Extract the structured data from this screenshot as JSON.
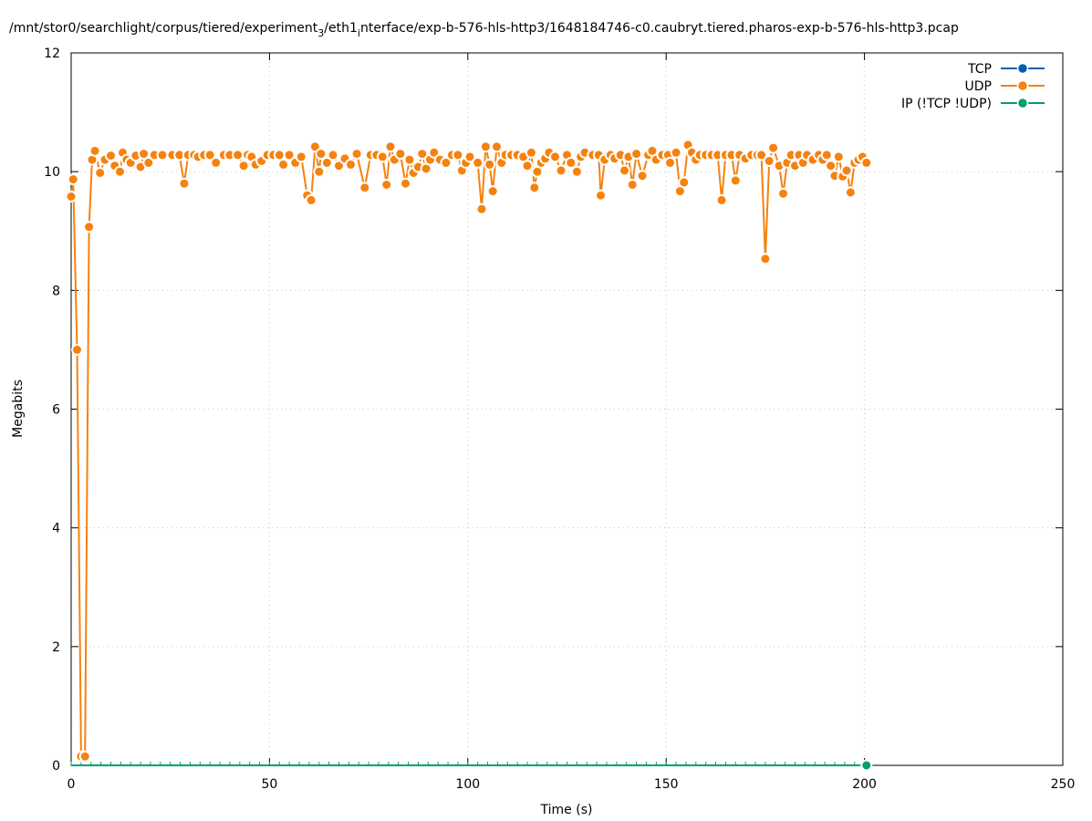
{
  "chart_data": {
    "type": "line",
    "title_main": "/mnt/stor0/searchlight/corpus/tiered/experiment",
    "title_sub1": "3",
    "title_mid": "/eth1",
    "title_sub2": "i",
    "title_rest": "nterface/exp-b-576-hls-http3/1648184746-c0.caubryt.tiered.pharos-exp-b-576-hls-http3.pcap",
    "xlabel": "Time (s)",
    "ylabel": "Megabits",
    "xlim": [
      0,
      250
    ],
    "ylim": [
      0,
      12
    ],
    "x_ticks": [
      "0",
      "50",
      "100",
      "150",
      "200",
      "250"
    ],
    "y_ticks": [
      "0",
      "2",
      "4",
      "6",
      "8",
      "10",
      "12"
    ],
    "grid": true,
    "legend_position": "top-right",
    "series": [
      {
        "name": "TCP",
        "color": "#0060ad",
        "points": []
      },
      {
        "name": "UDP",
        "color": "#f5820f",
        "points": [
          [
            0,
            9.58
          ],
          [
            0.5,
            9.87
          ],
          [
            1.5,
            7.0
          ],
          [
            2.5,
            0.15
          ],
          [
            3.5,
            0.15
          ],
          [
            4.5,
            9.07
          ],
          [
            5.3,
            10.2
          ],
          [
            6.0,
            10.35
          ],
          [
            7.3,
            9.98
          ],
          [
            8.5,
            10.2
          ],
          [
            10.0,
            10.27
          ],
          [
            11.0,
            10.1
          ],
          [
            12.3,
            10.0
          ],
          [
            13.0,
            10.32
          ],
          [
            14.0,
            10.2
          ],
          [
            15.0,
            10.15
          ],
          [
            16.3,
            10.27
          ],
          [
            17.5,
            10.08
          ],
          [
            18.3,
            10.3
          ],
          [
            19.5,
            10.15
          ],
          [
            21.0,
            10.28
          ],
          [
            23.0,
            10.28
          ],
          [
            25.5,
            10.28
          ],
          [
            27.3,
            10.28
          ],
          [
            28.5,
            9.8
          ],
          [
            29.5,
            10.28
          ],
          [
            31.0,
            10.28
          ],
          [
            32.0,
            10.25
          ],
          [
            33.5,
            10.28
          ],
          [
            35.0,
            10.28
          ],
          [
            36.5,
            10.15
          ],
          [
            38.5,
            10.28
          ],
          [
            40.0,
            10.28
          ],
          [
            42.0,
            10.28
          ],
          [
            43.5,
            10.1
          ],
          [
            44.5,
            10.28
          ],
          [
            45.5,
            10.25
          ],
          [
            46.5,
            10.12
          ],
          [
            48.0,
            10.18
          ],
          [
            49.5,
            10.28
          ],
          [
            51.0,
            10.28
          ],
          [
            52.5,
            10.28
          ],
          [
            53.5,
            10.12
          ],
          [
            55.0,
            10.28
          ],
          [
            56.5,
            10.15
          ],
          [
            58.0,
            10.25
          ],
          [
            59.5,
            9.6
          ],
          [
            60.5,
            9.52
          ],
          [
            61.5,
            10.42
          ],
          [
            62.5,
            10.0
          ],
          [
            63.0,
            10.3
          ],
          [
            64.5,
            10.15
          ],
          [
            66.0,
            10.28
          ],
          [
            67.5,
            10.1
          ],
          [
            69.0,
            10.22
          ],
          [
            70.5,
            10.12
          ],
          [
            72.0,
            10.3
          ],
          [
            74.0,
            9.73
          ],
          [
            75.5,
            10.28
          ],
          [
            77.0,
            10.28
          ],
          [
            78.5,
            10.25
          ],
          [
            79.5,
            9.78
          ],
          [
            80.5,
            10.42
          ],
          [
            81.5,
            10.2
          ],
          [
            83.0,
            10.3
          ],
          [
            84.3,
            9.8
          ],
          [
            85.3,
            10.2
          ],
          [
            86.3,
            9.98
          ],
          [
            87.5,
            10.08
          ],
          [
            88.5,
            10.3
          ],
          [
            89.5,
            10.05
          ],
          [
            90.5,
            10.2
          ],
          [
            91.5,
            10.32
          ],
          [
            93.0,
            10.2
          ],
          [
            94.5,
            10.15
          ],
          [
            96.0,
            10.28
          ],
          [
            97.5,
            10.28
          ],
          [
            98.5,
            10.02
          ],
          [
            99.5,
            10.15
          ],
          [
            100.5,
            10.25
          ],
          [
            102.5,
            10.15
          ],
          [
            103.5,
            9.37
          ],
          [
            104.5,
            10.42
          ],
          [
            105.5,
            10.12
          ],
          [
            106.3,
            9.67
          ],
          [
            107.3,
            10.42
          ],
          [
            108.5,
            10.15
          ],
          [
            109.5,
            10.28
          ],
          [
            111.0,
            10.28
          ],
          [
            112.5,
            10.28
          ],
          [
            114.0,
            10.25
          ],
          [
            115.0,
            10.1
          ],
          [
            116.0,
            10.32
          ],
          [
            116.8,
            9.73
          ],
          [
            117.5,
            10.0
          ],
          [
            118.5,
            10.15
          ],
          [
            119.5,
            10.22
          ],
          [
            120.5,
            10.32
          ],
          [
            122.0,
            10.25
          ],
          [
            123.5,
            10.02
          ],
          [
            125.0,
            10.28
          ],
          [
            126.0,
            10.15
          ],
          [
            127.5,
            10.0
          ],
          [
            128.5,
            10.25
          ],
          [
            129.5,
            10.32
          ],
          [
            131.5,
            10.28
          ],
          [
            133.0,
            10.28
          ],
          [
            133.5,
            9.6
          ],
          [
            134.5,
            10.2
          ],
          [
            136.0,
            10.28
          ],
          [
            137.0,
            10.22
          ],
          [
            138.5,
            10.28
          ],
          [
            139.5,
            10.02
          ],
          [
            140.5,
            10.25
          ],
          [
            141.5,
            9.78
          ],
          [
            142.5,
            10.3
          ],
          [
            144.0,
            9.93
          ],
          [
            145.5,
            10.28
          ],
          [
            146.5,
            10.35
          ],
          [
            147.5,
            10.2
          ],
          [
            149.0,
            10.28
          ],
          [
            150.5,
            10.28
          ],
          [
            151.0,
            10.15
          ],
          [
            152.5,
            10.32
          ],
          [
            153.5,
            9.67
          ],
          [
            154.5,
            9.82
          ],
          [
            155.5,
            10.45
          ],
          [
            156.5,
            10.32
          ],
          [
            157.5,
            10.2
          ],
          [
            158.5,
            10.28
          ],
          [
            160.0,
            10.28
          ],
          [
            161.5,
            10.28
          ],
          [
            163.0,
            10.28
          ],
          [
            164.0,
            9.52
          ],
          [
            165.0,
            10.28
          ],
          [
            166.5,
            10.28
          ],
          [
            167.5,
            9.85
          ],
          [
            168.5,
            10.28
          ],
          [
            170.0,
            10.22
          ],
          [
            171.5,
            10.28
          ],
          [
            173.0,
            10.28
          ],
          [
            174.0,
            10.28
          ],
          [
            175.0,
            8.53
          ],
          [
            176.0,
            10.18
          ],
          [
            177.0,
            10.4
          ],
          [
            178.5,
            10.1
          ],
          [
            179.5,
            9.63
          ],
          [
            180.5,
            10.15
          ],
          [
            181.5,
            10.28
          ],
          [
            182.5,
            10.1
          ],
          [
            183.5,
            10.28
          ],
          [
            184.5,
            10.15
          ],
          [
            185.5,
            10.28
          ],
          [
            187.0,
            10.2
          ],
          [
            188.5,
            10.28
          ],
          [
            189.5,
            10.2
          ],
          [
            190.5,
            10.28
          ],
          [
            191.5,
            10.1
          ],
          [
            192.5,
            9.93
          ],
          [
            193.5,
            10.25
          ],
          [
            194.5,
            9.92
          ],
          [
            195.5,
            10.02
          ],
          [
            196.5,
            9.65
          ],
          [
            197.5,
            10.15
          ],
          [
            198.5,
            10.2
          ],
          [
            199.5,
            10.25
          ],
          [
            200.5,
            10.15
          ]
        ]
      },
      {
        "name": "IP (!TCP  !UDP)",
        "color": "#009e73",
        "points": [
          [
            0,
            0
          ],
          [
            2,
            0
          ],
          [
            4,
            0
          ],
          [
            6,
            0
          ],
          [
            8,
            0
          ],
          [
            10,
            0
          ],
          [
            12,
            0
          ],
          [
            14,
            0
          ],
          [
            16,
            0
          ],
          [
            18,
            0
          ],
          [
            20,
            0
          ],
          [
            22,
            0
          ],
          [
            24,
            0
          ],
          [
            26,
            0
          ],
          [
            28,
            0
          ],
          [
            30,
            0
          ],
          [
            32,
            0
          ],
          [
            34,
            0
          ],
          [
            36,
            0
          ],
          [
            38,
            0
          ],
          [
            40,
            0
          ],
          [
            42,
            0
          ],
          [
            44,
            0
          ],
          [
            46,
            0
          ],
          [
            48,
            0
          ],
          [
            50,
            0
          ],
          [
            52,
            0
          ],
          [
            54,
            0
          ],
          [
            56,
            0
          ],
          [
            58,
            0
          ],
          [
            60,
            0
          ],
          [
            62,
            0
          ],
          [
            64,
            0
          ],
          [
            66,
            0
          ],
          [
            68,
            0
          ],
          [
            70,
            0
          ],
          [
            72,
            0
          ],
          [
            74,
            0
          ],
          [
            76,
            0
          ],
          [
            78,
            0
          ],
          [
            80,
            0
          ],
          [
            82,
            0
          ],
          [
            84,
            0
          ],
          [
            86,
            0
          ],
          [
            88,
            0
          ],
          [
            90,
            0
          ],
          [
            92,
            0
          ],
          [
            94,
            0
          ],
          [
            96,
            0
          ],
          [
            98,
            0
          ],
          [
            100,
            0
          ],
          [
            102,
            0
          ],
          [
            104,
            0
          ],
          [
            106,
            0
          ],
          [
            108,
            0
          ],
          [
            110,
            0
          ],
          [
            112,
            0
          ],
          [
            114,
            0
          ],
          [
            116,
            0
          ],
          [
            118,
            0
          ],
          [
            120,
            0
          ],
          [
            122,
            0
          ],
          [
            124,
            0
          ],
          [
            126,
            0
          ],
          [
            128,
            0
          ],
          [
            130,
            0
          ],
          [
            132,
            0
          ],
          [
            134,
            0
          ],
          [
            136,
            0
          ],
          [
            138,
            0
          ],
          [
            140,
            0
          ],
          [
            142,
            0
          ],
          [
            144,
            0
          ],
          [
            146,
            0
          ],
          [
            148,
            0
          ],
          [
            150,
            0
          ],
          [
            152,
            0
          ],
          [
            154,
            0
          ],
          [
            156,
            0
          ],
          [
            158,
            0
          ],
          [
            160,
            0
          ],
          [
            162,
            0
          ],
          [
            164,
            0
          ],
          [
            166,
            0
          ],
          [
            168,
            0
          ],
          [
            170,
            0
          ],
          [
            172,
            0
          ],
          [
            174,
            0
          ],
          [
            176,
            0
          ],
          [
            178,
            0
          ],
          [
            180,
            0
          ],
          [
            182,
            0
          ],
          [
            184,
            0
          ],
          [
            186,
            0
          ],
          [
            188,
            0
          ],
          [
            190,
            0
          ],
          [
            192,
            0
          ],
          [
            194,
            0
          ],
          [
            196,
            0
          ],
          [
            198,
            0
          ],
          [
            200.5,
            0
          ]
        ]
      }
    ]
  }
}
